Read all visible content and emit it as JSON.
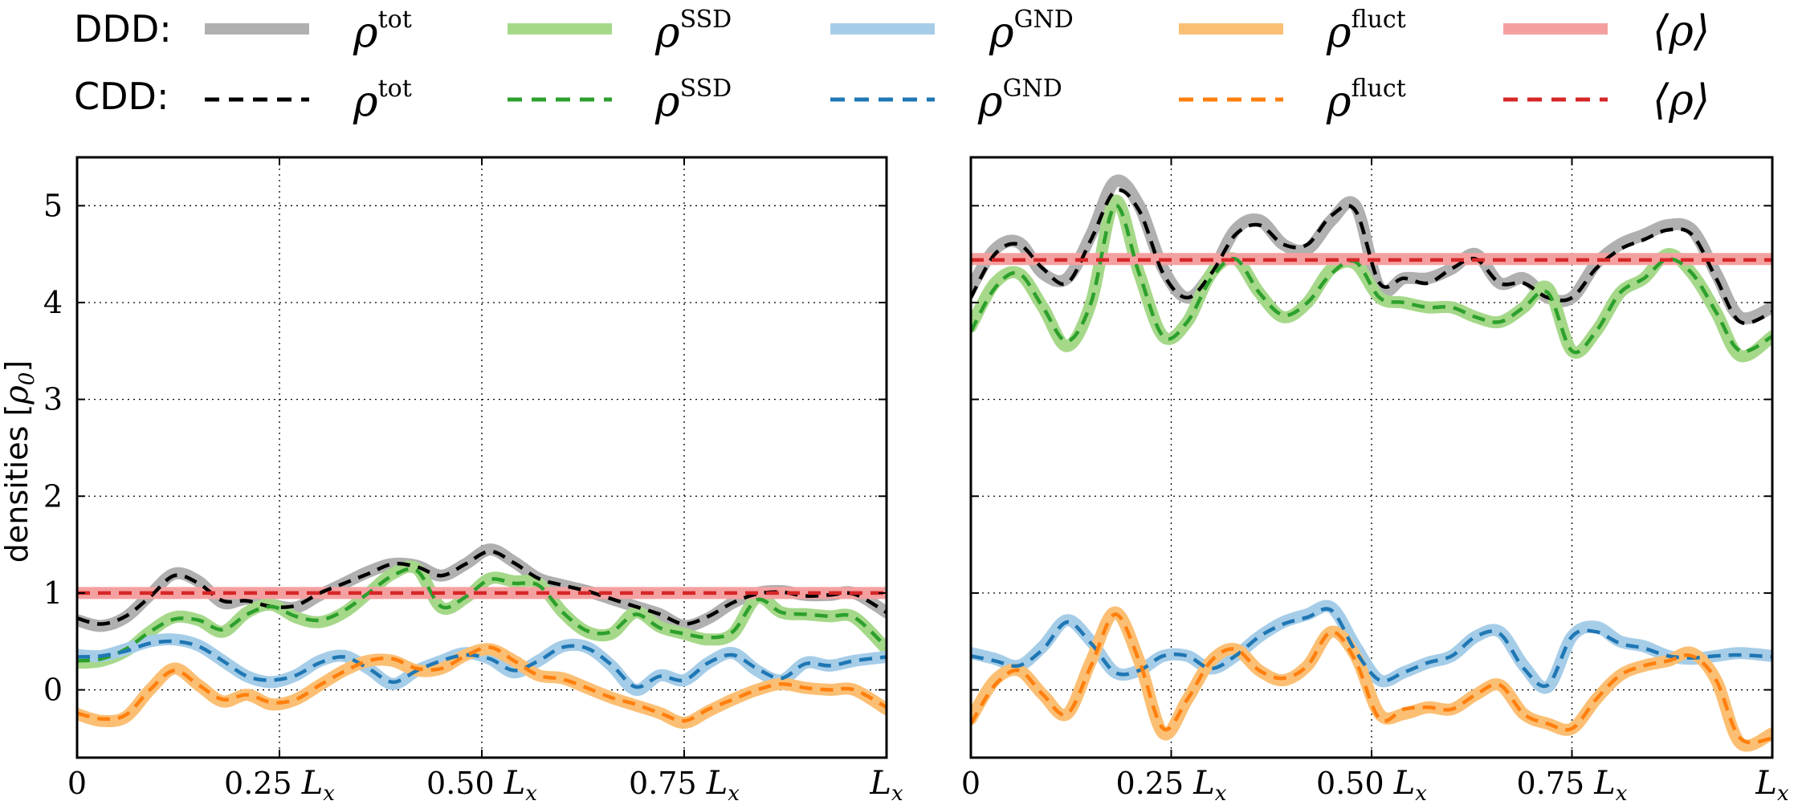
{
  "legend": {
    "rows": [
      {
        "label": "DDD:",
        "style": "solid"
      },
      {
        "label": "CDD:",
        "style": "dashed"
      }
    ],
    "entries": [
      {
        "key": "tot",
        "symbol": "ρ",
        "sup": "tot",
        "ddd_color": "#b0b0b0",
        "cdd_color": "#000000"
      },
      {
        "key": "ssd",
        "symbol": "ρ",
        "sup": "SSD",
        "ddd_color": "#a6d88a",
        "cdd_color": "#2ca02c"
      },
      {
        "key": "gnd",
        "symbol": "ρ",
        "sup": "GND",
        "ddd_color": "#a6cde8",
        "cdd_color": "#1f77b4"
      },
      {
        "key": "fluct",
        "symbol": "ρ",
        "sup": "fluct",
        "ddd_color": "#fbbf74",
        "cdd_color": "#ff7f0e"
      },
      {
        "key": "mean",
        "symbol": "⟨ρ⟩",
        "sup": "",
        "ddd_color": "#f4a0a0",
        "cdd_color": "#d62728"
      }
    ]
  },
  "chart_data": [
    {
      "type": "line",
      "panel": "left",
      "ylabel_text": "densities [",
      "ylabel_unit": "ρ",
      "ylabel_sub": "0",
      "ylabel_close": "]",
      "xlim": [
        0,
        1
      ],
      "ylim": [
        -0.7,
        5.5
      ],
      "yticks": [
        "0",
        "1",
        "2",
        "3",
        "4",
        "5"
      ],
      "xticks": [
        {
          "value": 0,
          "coef": "0",
          "unit": ""
        },
        {
          "value": 0.25,
          "coef": "0.25",
          "unit": "L",
          "sub": "x"
        },
        {
          "value": 0.5,
          "coef": "0.50",
          "unit": "L",
          "sub": "x"
        },
        {
          "value": 0.75,
          "coef": "0.75",
          "unit": "L",
          "sub": "x"
        },
        {
          "value": 1,
          "coef": "",
          "unit": "L",
          "sub": "x"
        }
      ],
      "grid": true,
      "show_ytick_labels": true,
      "series": [
        {
          "name": "ρ^tot",
          "key": "tot",
          "x": [
            0,
            0.03,
            0.06,
            0.09,
            0.12,
            0.15,
            0.18,
            0.21,
            0.24,
            0.27,
            0.3,
            0.33,
            0.36,
            0.39,
            0.42,
            0.45,
            0.48,
            0.51,
            0.54,
            0.57,
            0.6,
            0.63,
            0.66,
            0.69,
            0.72,
            0.75,
            0.78,
            0.81,
            0.84,
            0.87,
            0.9,
            0.93,
            0.96,
            1.0
          ],
          "ddd": [
            0.72,
            0.66,
            0.75,
            0.98,
            1.2,
            1.12,
            0.9,
            0.94,
            0.88,
            0.85,
            0.98,
            1.1,
            1.22,
            1.3,
            1.28,
            1.18,
            1.3,
            1.45,
            1.32,
            1.15,
            1.08,
            1.02,
            0.94,
            0.86,
            0.78,
            0.66,
            0.74,
            0.9,
            1.0,
            1.02,
            0.98,
            0.98,
            1.0,
            0.8
          ],
          "cdd": [
            0.74,
            0.68,
            0.76,
            0.96,
            1.18,
            1.1,
            0.92,
            0.92,
            0.86,
            0.87,
            1.0,
            1.1,
            1.2,
            1.3,
            1.27,
            1.18,
            1.3,
            1.43,
            1.31,
            1.15,
            1.08,
            1.02,
            0.94,
            0.86,
            0.78,
            0.68,
            0.76,
            0.9,
            0.99,
            1.01,
            0.97,
            0.98,
            0.99,
            0.8
          ]
        },
        {
          "name": "ρ^SSD",
          "key": "ssd",
          "x": [
            0,
            0.03,
            0.06,
            0.09,
            0.12,
            0.15,
            0.18,
            0.21,
            0.24,
            0.27,
            0.3,
            0.33,
            0.36,
            0.39,
            0.42,
            0.45,
            0.48,
            0.51,
            0.54,
            0.57,
            0.6,
            0.63,
            0.66,
            0.69,
            0.72,
            0.75,
            0.78,
            0.81,
            0.84,
            0.87,
            0.9,
            0.93,
            0.96,
            1.0
          ],
          "ddd": [
            0.28,
            0.3,
            0.4,
            0.6,
            0.75,
            0.72,
            0.6,
            0.8,
            0.88,
            0.75,
            0.7,
            0.8,
            1.0,
            1.2,
            1.25,
            0.85,
            0.95,
            1.15,
            1.12,
            1.1,
            0.8,
            0.6,
            0.58,
            0.8,
            0.65,
            0.58,
            0.52,
            0.58,
            0.95,
            0.8,
            0.78,
            0.76,
            0.75,
            0.42
          ],
          "cdd": [
            0.3,
            0.32,
            0.42,
            0.6,
            0.73,
            0.72,
            0.62,
            0.78,
            0.86,
            0.76,
            0.72,
            0.82,
            1.0,
            1.18,
            1.23,
            0.86,
            0.96,
            1.14,
            1.1,
            1.08,
            0.8,
            0.61,
            0.6,
            0.78,
            0.64,
            0.58,
            0.54,
            0.6,
            0.93,
            0.8,
            0.78,
            0.76,
            0.75,
            0.44
          ]
        },
        {
          "name": "ρ^GND",
          "key": "gnd",
          "x": [
            0,
            0.03,
            0.06,
            0.09,
            0.12,
            0.15,
            0.18,
            0.21,
            0.24,
            0.27,
            0.3,
            0.33,
            0.36,
            0.39,
            0.42,
            0.45,
            0.48,
            0.51,
            0.54,
            0.57,
            0.6,
            0.63,
            0.66,
            0.69,
            0.72,
            0.75,
            0.78,
            0.81,
            0.84,
            0.87,
            0.9,
            0.93,
            0.96,
            1.0
          ],
          "ddd": [
            0.36,
            0.35,
            0.42,
            0.5,
            0.52,
            0.46,
            0.3,
            0.14,
            0.08,
            0.15,
            0.3,
            0.35,
            0.22,
            0.06,
            0.2,
            0.3,
            0.38,
            0.32,
            0.18,
            0.3,
            0.45,
            0.44,
            0.25,
            0.0,
            0.15,
            0.1,
            0.28,
            0.38,
            0.2,
            0.1,
            0.28,
            0.25,
            0.3,
            0.34
          ],
          "cdd": [
            0.34,
            0.35,
            0.4,
            0.48,
            0.5,
            0.45,
            0.3,
            0.14,
            0.1,
            0.15,
            0.28,
            0.34,
            0.22,
            0.08,
            0.2,
            0.3,
            0.36,
            0.32,
            0.2,
            0.3,
            0.44,
            0.43,
            0.26,
            0.03,
            0.14,
            0.1,
            0.28,
            0.36,
            0.22,
            0.12,
            0.27,
            0.25,
            0.3,
            0.34
          ]
        },
        {
          "name": "ρ^fluct",
          "key": "fluct",
          "x": [
            0,
            0.03,
            0.06,
            0.09,
            0.12,
            0.15,
            0.18,
            0.21,
            0.24,
            0.27,
            0.3,
            0.33,
            0.36,
            0.39,
            0.42,
            0.45,
            0.48,
            0.51,
            0.54,
            0.57,
            0.6,
            0.63,
            0.66,
            0.69,
            0.72,
            0.75,
            0.78,
            0.81,
            0.84,
            0.87,
            0.9,
            0.93,
            0.96,
            1.0
          ],
          "ddd": [
            -0.25,
            -0.32,
            -0.28,
            0.0,
            0.22,
            0.05,
            -0.12,
            -0.05,
            -0.15,
            -0.1,
            0.05,
            0.2,
            0.3,
            0.3,
            0.2,
            0.22,
            0.36,
            0.42,
            0.3,
            0.15,
            0.12,
            0.02,
            -0.08,
            -0.16,
            -0.24,
            -0.34,
            -0.22,
            -0.1,
            0.0,
            0.06,
            0.02,
            0.0,
            0.0,
            -0.2
          ],
          "cdd": [
            -0.24,
            -0.3,
            -0.26,
            0.0,
            0.2,
            0.05,
            -0.1,
            -0.05,
            -0.13,
            -0.1,
            0.05,
            0.19,
            0.3,
            0.32,
            0.22,
            0.22,
            0.35,
            0.44,
            0.3,
            0.15,
            0.11,
            0.02,
            -0.08,
            -0.15,
            -0.24,
            -0.32,
            -0.2,
            -0.1,
            0.0,
            0.06,
            0.02,
            0.0,
            0.0,
            -0.18
          ]
        },
        {
          "name": "⟨ρ⟩",
          "key": "mean",
          "x": [
            0,
            1
          ],
          "ddd": [
            1.0,
            1.0
          ],
          "cdd": [
            1.0,
            1.0
          ]
        }
      ]
    },
    {
      "type": "line",
      "panel": "right",
      "xlim": [
        0,
        1
      ],
      "ylim": [
        -0.7,
        5.5
      ],
      "yticks": [
        "0",
        "1",
        "2",
        "3",
        "4",
        "5"
      ],
      "xticks": [
        {
          "value": 0,
          "coef": "0",
          "unit": ""
        },
        {
          "value": 0.25,
          "coef": "0.25",
          "unit": "L",
          "sub": "x"
        },
        {
          "value": 0.5,
          "coef": "0.50",
          "unit": "L",
          "sub": "x"
        },
        {
          "value": 0.75,
          "coef": "0.75",
          "unit": "L",
          "sub": "x"
        },
        {
          "value": 1,
          "coef": "",
          "unit": "L",
          "sub": "x"
        }
      ],
      "grid": true,
      "show_ytick_labels": false,
      "series": [
        {
          "name": "ρ^tot",
          "key": "tot",
          "x": [
            0,
            0.03,
            0.06,
            0.09,
            0.12,
            0.15,
            0.18,
            0.21,
            0.24,
            0.27,
            0.3,
            0.33,
            0.36,
            0.39,
            0.42,
            0.45,
            0.48,
            0.51,
            0.54,
            0.57,
            0.6,
            0.63,
            0.66,
            0.69,
            0.72,
            0.75,
            0.78,
            0.81,
            0.84,
            0.87,
            0.9,
            0.93,
            0.96,
            1.0
          ],
          "ddd": [
            4.15,
            4.55,
            4.62,
            4.3,
            4.25,
            4.7,
            5.25,
            5.0,
            4.35,
            4.05,
            4.3,
            4.75,
            4.85,
            4.6,
            4.55,
            4.85,
            5.0,
            4.15,
            4.25,
            4.25,
            4.35,
            4.5,
            4.2,
            4.25,
            4.05,
            4.05,
            4.4,
            4.6,
            4.7,
            4.8,
            4.75,
            4.3,
            3.85,
            3.95
          ],
          "cdd": [
            4.05,
            4.5,
            4.6,
            4.35,
            4.2,
            4.65,
            5.15,
            4.95,
            4.3,
            4.05,
            4.3,
            4.7,
            4.8,
            4.6,
            4.6,
            4.9,
            4.95,
            4.2,
            4.25,
            4.2,
            4.35,
            4.45,
            4.2,
            4.2,
            4.05,
            4.05,
            4.35,
            4.55,
            4.65,
            4.75,
            4.7,
            4.25,
            3.8,
            3.9
          ]
        },
        {
          "name": "ρ^SSD",
          "key": "ssd",
          "x": [
            0,
            0.03,
            0.06,
            0.09,
            0.12,
            0.15,
            0.18,
            0.21,
            0.24,
            0.27,
            0.3,
            0.33,
            0.36,
            0.39,
            0.42,
            0.45,
            0.48,
            0.51,
            0.54,
            0.57,
            0.6,
            0.63,
            0.66,
            0.69,
            0.72,
            0.75,
            0.78,
            0.81,
            0.84,
            0.87,
            0.9,
            0.93,
            0.96,
            1.0
          ],
          "ddd": [
            3.75,
            4.2,
            4.3,
            3.95,
            3.55,
            4.0,
            5.05,
            4.3,
            3.65,
            3.8,
            4.3,
            4.45,
            4.1,
            3.85,
            4.0,
            4.35,
            4.4,
            4.05,
            4.0,
            3.95,
            3.95,
            3.85,
            3.8,
            3.95,
            4.15,
            3.5,
            3.7,
            4.1,
            4.25,
            4.5,
            4.3,
            3.9,
            3.45,
            3.65
          ],
          "cdd": [
            3.7,
            4.15,
            4.3,
            3.95,
            3.6,
            4.0,
            5.0,
            4.3,
            3.65,
            3.8,
            4.25,
            4.45,
            4.1,
            3.87,
            4.0,
            4.3,
            4.42,
            4.05,
            4.0,
            3.95,
            3.95,
            3.85,
            3.8,
            3.95,
            4.1,
            3.5,
            3.7,
            4.1,
            4.25,
            4.45,
            4.3,
            3.9,
            3.5,
            3.65
          ]
        },
        {
          "name": "ρ^GND",
          "key": "gnd",
          "x": [
            0,
            0.03,
            0.06,
            0.09,
            0.12,
            0.15,
            0.18,
            0.21,
            0.24,
            0.27,
            0.3,
            0.33,
            0.36,
            0.39,
            0.42,
            0.45,
            0.48,
            0.51,
            0.54,
            0.57,
            0.6,
            0.63,
            0.66,
            0.69,
            0.72,
            0.75,
            0.78,
            0.81,
            0.84,
            0.87,
            0.9,
            0.93,
            0.96,
            1.0
          ],
          "ddd": [
            0.38,
            0.32,
            0.25,
            0.45,
            0.72,
            0.5,
            0.18,
            0.2,
            0.35,
            0.35,
            0.22,
            0.35,
            0.55,
            0.7,
            0.78,
            0.85,
            0.45,
            0.1,
            0.18,
            0.28,
            0.35,
            0.55,
            0.6,
            0.25,
            0.03,
            0.55,
            0.65,
            0.5,
            0.45,
            0.35,
            0.32,
            0.35,
            0.38,
            0.35
          ],
          "cdd": [
            0.35,
            0.3,
            0.25,
            0.42,
            0.7,
            0.48,
            0.18,
            0.2,
            0.35,
            0.35,
            0.22,
            0.35,
            0.55,
            0.68,
            0.75,
            0.82,
            0.4,
            0.1,
            0.18,
            0.28,
            0.35,
            0.55,
            0.58,
            0.22,
            0.05,
            0.55,
            0.6,
            0.48,
            0.43,
            0.35,
            0.33,
            0.35,
            0.36,
            0.34
          ]
        },
        {
          "name": "ρ^fluct",
          "key": "fluct",
          "x": [
            0,
            0.03,
            0.06,
            0.09,
            0.12,
            0.15,
            0.18,
            0.21,
            0.24,
            0.27,
            0.3,
            0.33,
            0.36,
            0.39,
            0.42,
            0.45,
            0.48,
            0.51,
            0.54,
            0.57,
            0.6,
            0.63,
            0.66,
            0.69,
            0.72,
            0.75,
            0.78,
            0.81,
            0.84,
            0.87,
            0.9,
            0.93,
            0.96,
            1.0
          ],
          "ddd": [
            -0.3,
            0.1,
            0.2,
            -0.05,
            -0.25,
            0.3,
            0.8,
            0.3,
            -0.45,
            -0.1,
            0.3,
            0.42,
            0.2,
            0.1,
            0.25,
            0.6,
            0.35,
            -0.25,
            -0.25,
            -0.18,
            -0.2,
            -0.05,
            0.05,
            -0.25,
            -0.35,
            -0.4,
            -0.1,
            0.15,
            0.25,
            0.3,
            0.38,
            0.1,
            -0.55,
            -0.45
          ],
          "cdd": [
            -0.35,
            0.05,
            0.2,
            -0.05,
            -0.25,
            0.25,
            0.78,
            0.3,
            -0.4,
            -0.1,
            0.3,
            0.42,
            0.2,
            0.12,
            0.25,
            0.6,
            0.3,
            -0.3,
            -0.2,
            -0.18,
            -0.2,
            -0.05,
            0.05,
            -0.25,
            -0.35,
            -0.4,
            -0.1,
            0.15,
            0.25,
            0.3,
            0.35,
            0.1,
            -0.5,
            -0.5
          ]
        },
        {
          "name": "⟨ρ⟩",
          "key": "mean",
          "x": [
            0,
            1
          ],
          "ddd": [
            4.45,
            4.45
          ],
          "cdd": [
            4.44,
            4.44
          ]
        }
      ]
    }
  ]
}
